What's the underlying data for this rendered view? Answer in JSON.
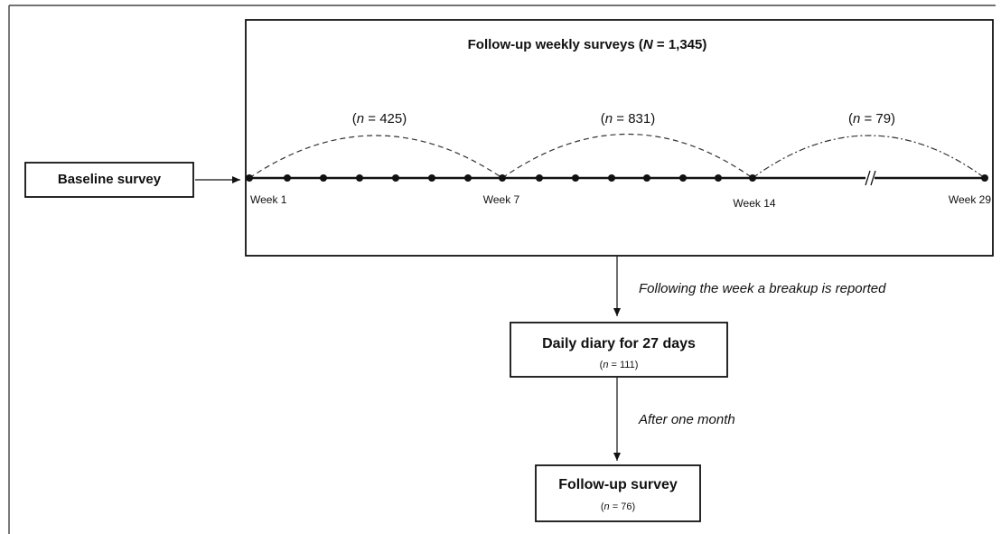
{
  "title": [
    "Follow-up weekly surveys (",
    "N",
    " = 1,345)"
  ],
  "baseline": "Baseline survey",
  "periods": [
    [
      "(",
      "n",
      " = 425)"
    ],
    [
      "(",
      "n",
      " = 831)"
    ],
    [
      "(",
      "n",
      " = 79)"
    ]
  ],
  "weeks": [
    "Week 1",
    "Week 7",
    "Week 14",
    "Week 29"
  ],
  "arrow_labels": [
    "Following the week a breakup is reported",
    "After one month"
  ],
  "daily": {
    "title": "Daily diary for 27 days",
    "n": [
      "(",
      "n",
      " = 111)"
    ]
  },
  "followup": {
    "title": "Follow-up survey",
    "n": [
      "(",
      "n",
      " = 76)"
    ]
  }
}
